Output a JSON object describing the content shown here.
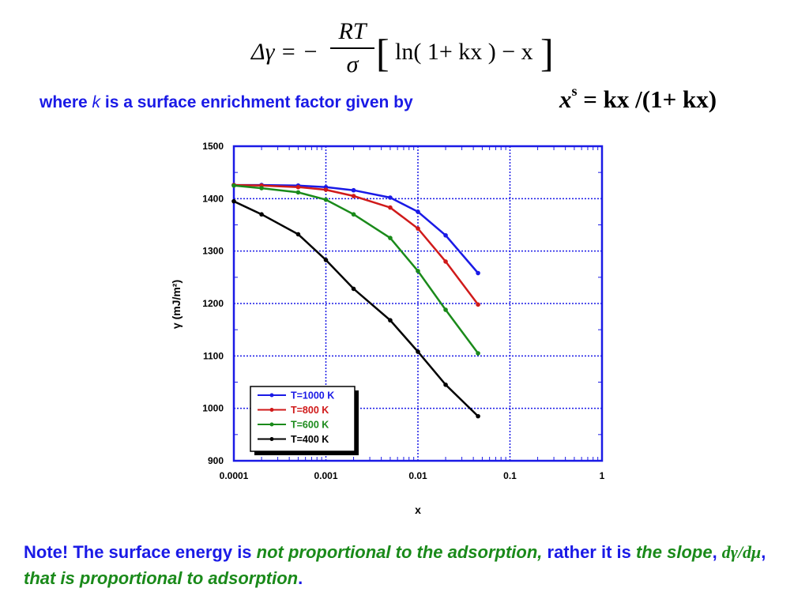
{
  "formula_main": {
    "lhs": "Δγ = −",
    "numerator": "RT",
    "denominator": "σ",
    "bracket_left": "[",
    "inner": "ln( 1+ kx ) − x",
    "bracket_right": "]"
  },
  "where_text": {
    "part1": "where ",
    "k": "k",
    "part2": " is a surface enrichment factor given by"
  },
  "formula_xs": {
    "x": "x",
    "sup": "s",
    "rest": " = kx /(1+ kx)"
  },
  "note": {
    "part1": "Note! The surface energy is ",
    "italic1": "not proportional to the adsorption,",
    "part2": " rather it is ",
    "italic2": "the slope",
    "part3": ", ",
    "deriv": "dγ/dμ",
    "part4": ", ",
    "italic3": "that is proportional to adsorption",
    "part5": "."
  },
  "chart_data": {
    "type": "line",
    "title": "",
    "xlabel": "x",
    "ylabel": "γ (mJ/m²)",
    "xscale": "log",
    "xlim": [
      0.0001,
      1
    ],
    "ylim": [
      900,
      1500
    ],
    "x_ticks": [
      0.0001,
      0.001,
      0.01,
      0.1,
      1
    ],
    "x_tick_labels": [
      "0.0001",
      "0.001",
      "0.01",
      "0.1",
      "1"
    ],
    "y_ticks": [
      900,
      1000,
      1100,
      1200,
      1300,
      1400,
      1500
    ],
    "y_tick_labels": [
      "900",
      "1000",
      "1100",
      "1200",
      "1300",
      "1400",
      "1500"
    ],
    "grid": true,
    "legend_position": "bottom-left",
    "series": [
      {
        "name": "T=1000 K",
        "color": "#1a1ae6",
        "x": [
          0.0001,
          0.0002,
          0.0005,
          0.001,
          0.002,
          0.005,
          0.01,
          0.02,
          0.045
        ],
        "y": [
          1426,
          1426,
          1425,
          1422,
          1416,
          1402,
          1375,
          1330,
          1258
        ]
      },
      {
        "name": "T=800 K",
        "color": "#d01a1a",
        "x": [
          0.0001,
          0.0002,
          0.0005,
          0.001,
          0.002,
          0.005,
          0.01,
          0.02,
          0.045
        ],
        "y": [
          1426,
          1425,
          1422,
          1417,
          1405,
          1383,
          1343,
          1280,
          1198
        ]
      },
      {
        "name": "T=600 K",
        "color": "#1a8a1a",
        "x": [
          0.0001,
          0.0002,
          0.0005,
          0.001,
          0.002,
          0.005,
          0.01,
          0.02,
          0.045
        ],
        "y": [
          1425,
          1420,
          1412,
          1398,
          1370,
          1325,
          1262,
          1188,
          1105
        ]
      },
      {
        "name": "T=400 K",
        "color": "#000000",
        "x": [
          0.0001,
          0.0002,
          0.0005,
          0.001,
          0.002,
          0.005,
          0.01,
          0.02,
          0.045
        ],
        "y": [
          1395,
          1370,
          1332,
          1283,
          1228,
          1168,
          1108,
          1045,
          985
        ]
      }
    ]
  }
}
